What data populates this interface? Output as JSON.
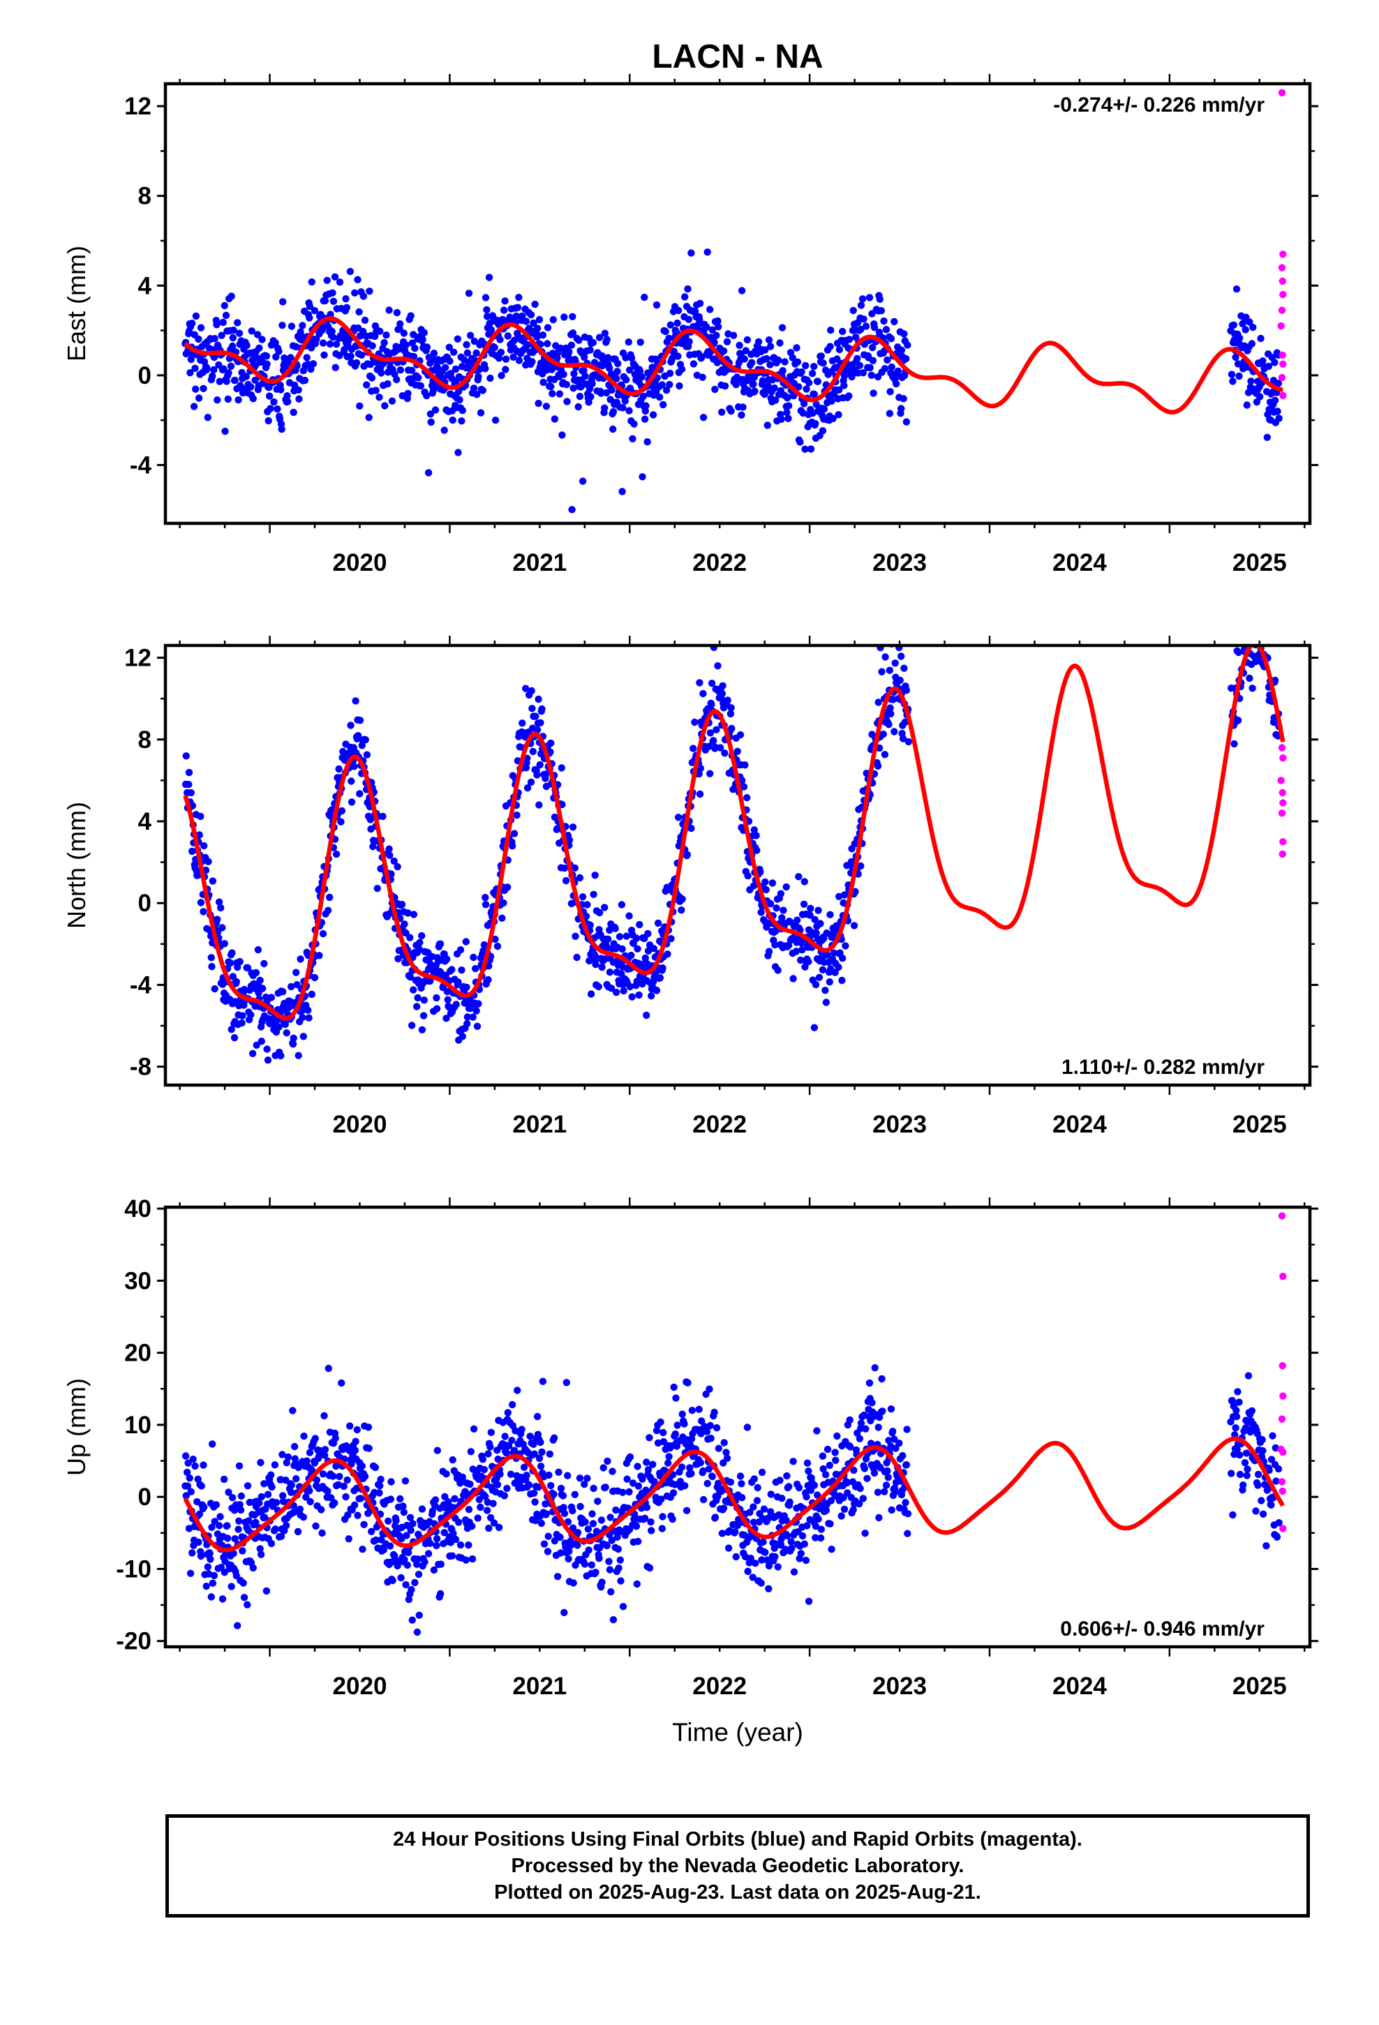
{
  "title": "LACN - NA",
  "x_axis_title": "Time (year)",
  "footer": [
    "24 Hour Positions Using Final Orbits (blue) and Rapid Orbits (magenta).",
    "Processed by the Nevada Geodetic Laboratory.",
    "Plotted on 2025-Aug-23. Last data on 2025-Aug-21."
  ],
  "colors": {
    "final": "#0000ff",
    "rapid": "#ff00ff",
    "model": "#ff0000",
    "axis": "#000000"
  },
  "chart_data": [
    {
      "type": "scatter",
      "component": "east",
      "ylabel": "East (mm)",
      "rate_label": "-0.274+/- 0.226 mm/yr",
      "rate_position": "top-right",
      "xlim": [
        2019.42,
        2025.78
      ],
      "ylim": [
        -6.6,
        13.0
      ],
      "yticks": [
        -4,
        0,
        4,
        8,
        12
      ],
      "xticks": [
        2020,
        2021,
        2022,
        2023,
        2024,
        2025
      ],
      "grid": false,
      "final_data": {
        "start": 2019.53,
        "end": 2023.55,
        "gap_start": 2023.55,
        "resume": 2025.34,
        "last": 2025.61,
        "noise_mm": 1.0
      },
      "rapid_points": [
        [
          2025.625,
          12.6
        ],
        [
          2025.63,
          5.4
        ],
        [
          2025.625,
          4.8
        ],
        [
          2025.628,
          4.2
        ],
        [
          2025.63,
          3.6
        ],
        [
          2025.625,
          2.9
        ],
        [
          2025.62,
          2.2
        ],
        [
          2025.628,
          0.9
        ],
        [
          2025.63,
          0.5
        ],
        [
          2025.625,
          -0.1
        ],
        [
          2025.63,
          -0.9
        ]
      ],
      "model": {
        "offset": 0.4,
        "rate": -0.274,
        "ref_year": 2022.5,
        "annual_sin": 0.6,
        "annual_cos": -0.9,
        "semi_sin": -0.4,
        "semi_cos": -0.45
      }
    },
    {
      "type": "scatter",
      "component": "north",
      "ylabel": "North (mm)",
      "rate_label": "1.110+/- 0.282 mm/yr",
      "rate_position": "bottom-right",
      "xlim": [
        2019.42,
        2025.78
      ],
      "ylim": [
        -8.9,
        12.6
      ],
      "yticks": [
        -8,
        -4,
        0,
        4,
        8,
        12
      ],
      "xticks": [
        2020,
        2021,
        2022,
        2023,
        2024,
        2025
      ],
      "grid": false,
      "final_data": {
        "start": 2019.53,
        "end": 2023.55,
        "gap_start": 2023.55,
        "resume": 2025.34,
        "last": 2025.61,
        "noise_mm": 1.1
      },
      "rapid_points": [
        [
          2025.625,
          7.6
        ],
        [
          2025.63,
          7.1
        ],
        [
          2025.62,
          6.0
        ],
        [
          2025.628,
          5.4
        ],
        [
          2025.63,
          4.9
        ],
        [
          2025.625,
          4.4
        ],
        [
          2025.63,
          3.0
        ],
        [
          2025.628,
          2.4
        ]
      ],
      "model": {
        "offset": 1.8,
        "rate": 1.11,
        "ref_year": 2022.5,
        "annual_sin": 0.5,
        "annual_cos": -5.8,
        "semi_sin": -0.9,
        "semi_cos": 1.6
      }
    },
    {
      "type": "scatter",
      "component": "up",
      "ylabel": "Up (mm)",
      "rate_label": "0.606+/- 0.946 mm/yr",
      "rate_position": "bottom-right",
      "x_axis_title": "Time (year)",
      "xlim": [
        2019.42,
        2025.78
      ],
      "ylim": [
        -20.8,
        40.2
      ],
      "yticks": [
        -20,
        -10,
        0,
        10,
        20,
        30,
        40
      ],
      "xticks": [
        2020,
        2021,
        2022,
        2023,
        2024,
        2025
      ],
      "grid": false,
      "final_data": {
        "start": 2019.53,
        "end": 2023.55,
        "gap_start": 2023.55,
        "resume": 2025.34,
        "last": 2025.61,
        "noise_mm": 4.0
      },
      "rapid_points": [
        [
          2025.625,
          39.0
        ],
        [
          2025.63,
          30.6
        ],
        [
          2025.628,
          18.2
        ],
        [
          2025.63,
          14.0
        ],
        [
          2025.625,
          10.8
        ],
        [
          2025.62,
          6.6
        ],
        [
          2025.63,
          6.2
        ],
        [
          2025.625,
          2.1
        ],
        [
          2025.628,
          0.8
        ],
        [
          2025.63,
          -4.4
        ]
      ],
      "model": {
        "offset": 0.0,
        "rate": 0.606,
        "ref_year": 2022.5,
        "annual_sin": 5.1,
        "annual_cos": -2.4,
        "semi_sin": -1.0,
        "semi_cos": 0.6
      }
    }
  ]
}
